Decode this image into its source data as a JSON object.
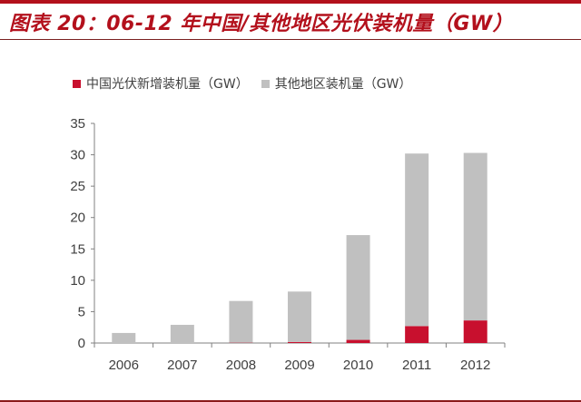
{
  "header": {
    "title": "图表 20：06-12 年中国/其他地区光伏装机量（GW）"
  },
  "legend": {
    "items": [
      {
        "label": "中国光伏新增装机量（GW）",
        "color": "#c8102e"
      },
      {
        "label": "其他地区装机量（GW）",
        "color": "#c0c0c0"
      }
    ]
  },
  "colors": {
    "accent": "#b3101c",
    "china": "#c8102e",
    "other": "#c0c0c0",
    "axis": "#808080",
    "text": "#404040"
  },
  "chart_data": {
    "type": "bar",
    "stacked": true,
    "title": "图表 20：06-12 年中国/其他地区光伏装机量（GW）",
    "xlabel": "",
    "ylabel": "",
    "categories": [
      "2006",
      "2007",
      "2008",
      "2009",
      "2010",
      "2011",
      "2012"
    ],
    "series": [
      {
        "name": "中国光伏新增装机量（GW）",
        "color": "#c8102e",
        "values": [
          0.0,
          0.0,
          0.05,
          0.16,
          0.5,
          2.7,
          3.6
        ]
      },
      {
        "name": "其他地区装机量（GW）",
        "color": "#c0c0c0",
        "values": [
          1.6,
          2.9,
          6.65,
          8.04,
          16.7,
          27.5,
          26.7
        ]
      }
    ],
    "totals": [
      1.6,
      2.9,
      6.7,
      8.2,
      17.2,
      30.2,
      30.3
    ],
    "ylim": [
      0,
      35
    ],
    "yticks": [
      0,
      5,
      10,
      15,
      20,
      25,
      30,
      35
    ],
    "grid": false,
    "legend_position": "top"
  }
}
